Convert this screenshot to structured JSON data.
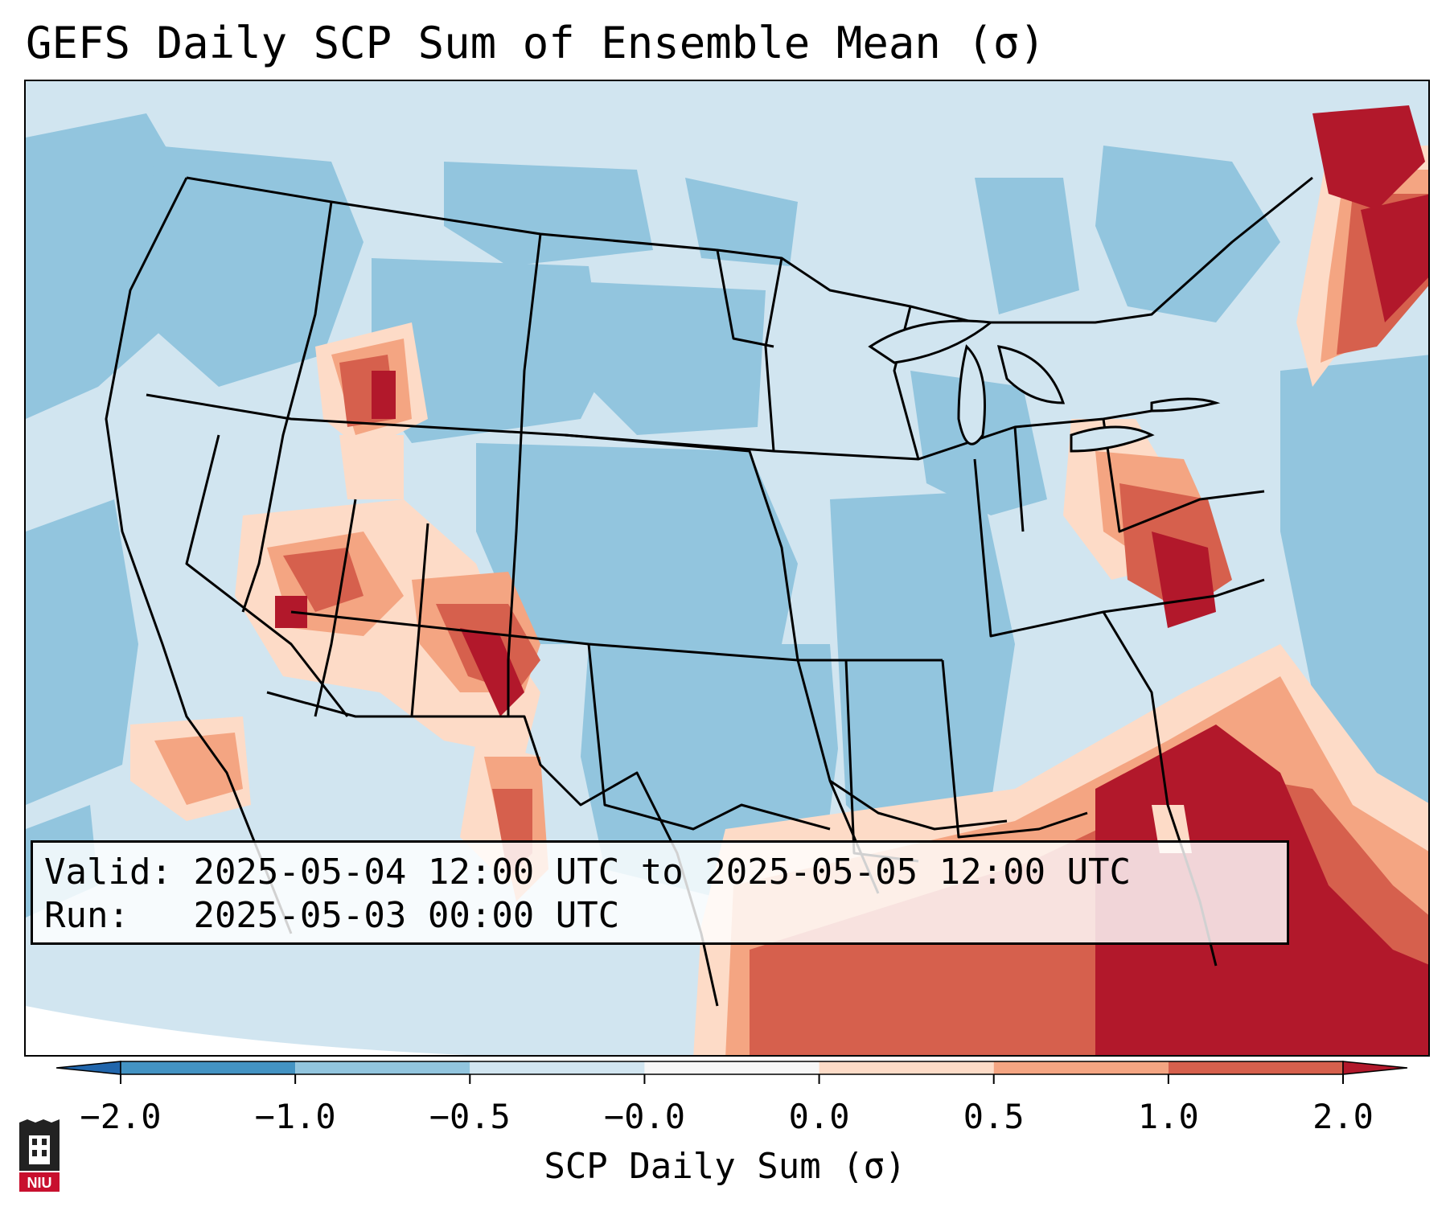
{
  "title": "GEFS Daily SCP Sum of Ensemble Mean (σ)",
  "info": {
    "valid_label": "Valid:",
    "valid_value": "2025-05-04 12:00 UTC to 2025-05-05 12:00 UTC",
    "run_label": "Run:",
    "run_value": "2025-05-03 00:00 UTC"
  },
  "colorbar": {
    "label": "SCP Daily Sum (σ)",
    "ticks": [
      "−2.0",
      "−1.0",
      "−0.5",
      "−0.0",
      "0.0",
      "0.5",
      "1.0",
      "2.0"
    ],
    "colors": [
      "#4393c3",
      "#92c5de",
      "#d1e5f0",
      "#f7f7f7",
      "#fddbc7",
      "#f4a582",
      "#d6604d",
      "#b2182b"
    ],
    "under_color": "#2166ac",
    "over_color": "#b2182b"
  },
  "logo": {
    "text": "NIU",
    "color": "#c8102e"
  },
  "icons": {
    "logo": "niu-logo-icon"
  }
}
